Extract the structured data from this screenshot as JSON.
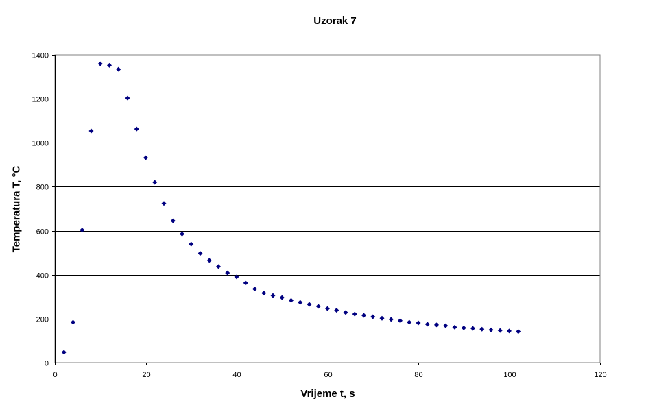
{
  "chart_data": {
    "type": "scatter",
    "title": "Uzorak 7",
    "xlabel": "Vrijeme t, s",
    "ylabel": "Temperatura T, °C",
    "xlim": [
      0,
      120
    ],
    "ylim": [
      0,
      1400
    ],
    "xticks": [
      0,
      20,
      40,
      60,
      80,
      100,
      120
    ],
    "yticks": [
      0,
      200,
      400,
      600,
      800,
      1000,
      1200,
      1400
    ],
    "grid": "horizontal major",
    "legend": "none",
    "marker": "diamond",
    "marker_color": "#000080",
    "series": [
      {
        "name": "Uzorak 7",
        "x": [
          2,
          4,
          6,
          8,
          10,
          12,
          14,
          16,
          18,
          20,
          22,
          24,
          26,
          28,
          30,
          32,
          34,
          36,
          38,
          40,
          42,
          44,
          46,
          48,
          50,
          52,
          54,
          56,
          58,
          60,
          62,
          64,
          66,
          68,
          70,
          72,
          74,
          76,
          78,
          80,
          82,
          84,
          86,
          88,
          90,
          92,
          94,
          96,
          98,
          100,
          102
        ],
        "y": [
          47,
          184,
          603,
          1054,
          1359,
          1352,
          1334,
          1203,
          1063,
          932,
          820,
          724,
          645,
          585,
          539,
          497,
          465,
          437,
          408,
          390,
          362,
          335,
          316,
          305,
          296,
          283,
          274,
          265,
          256,
          246,
          238,
          228,
          221,
          215,
          209,
          202,
          197,
          191,
          184,
          181,
          175,
          172,
          168,
          161,
          158,
          156,
          152,
          149,
          146,
          144,
          141
        ]
      }
    ]
  },
  "colors": {
    "background": "#ffffff",
    "plot_border": "#808080",
    "gridline": "#000000",
    "marker": "#000080"
  }
}
